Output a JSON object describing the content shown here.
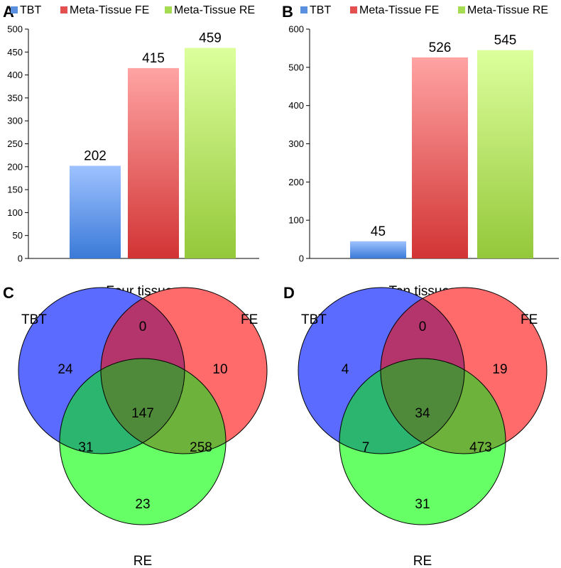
{
  "panels": {
    "a": "A",
    "b": "B",
    "c": "C",
    "d": "D"
  },
  "colors": {
    "tbt": "#5b6bff",
    "fe": "#ff6a6a",
    "re": "#66ff66",
    "tbt_fe": "#b3356b",
    "tbt_re": "#2bb56e",
    "fe_re": "#6db23a",
    "all": "#4f8a3a"
  },
  "chart_data": [
    {
      "type": "bar",
      "panel": "A",
      "categories": [
        "TBT",
        "Meta-Tissue FE",
        "Meta-Tissue RE"
      ],
      "values": [
        202,
        415,
        459
      ],
      "ylim": [
        0,
        500
      ],
      "yticks": [
        "0",
        "50",
        "100",
        "150",
        "200",
        "250",
        "300",
        "350",
        "400",
        "450",
        "500"
      ],
      "legend": [
        "TBT",
        "Meta-Tissue FE",
        "Meta-Tissue RE"
      ],
      "legend_position": "top",
      "grid": false
    },
    {
      "type": "bar",
      "panel": "B",
      "categories": [
        "TBT",
        "Meta-Tissue FE",
        "Meta-Tissue RE"
      ],
      "values": [
        45,
        526,
        545
      ],
      "ylim": [
        0,
        600
      ],
      "yticks": [
        "0",
        "100",
        "200",
        "300",
        "400",
        "500",
        "600"
      ],
      "legend": [
        "TBT",
        "Meta-Tissue FE",
        "Meta-Tissue RE"
      ],
      "legend_position": "top",
      "grid": false
    },
    {
      "type": "venn",
      "panel": "C",
      "title": "Four tissues",
      "sets": [
        "TBT",
        "FE",
        "RE"
      ],
      "regions": {
        "tbt_only": "24",
        "fe_only": "10",
        "re_only": "23",
        "tbt_fe": "0",
        "tbt_re": "31",
        "fe_re": "258",
        "all": "147"
      }
    },
    {
      "type": "venn",
      "panel": "D",
      "title": "Ten tissues",
      "sets": [
        "TBT",
        "FE",
        "RE"
      ],
      "regions": {
        "tbt_only": "4",
        "fe_only": "19",
        "re_only": "31",
        "tbt_fe": "0",
        "tbt_re": "7",
        "fe_re": "473",
        "all": "34"
      }
    }
  ]
}
